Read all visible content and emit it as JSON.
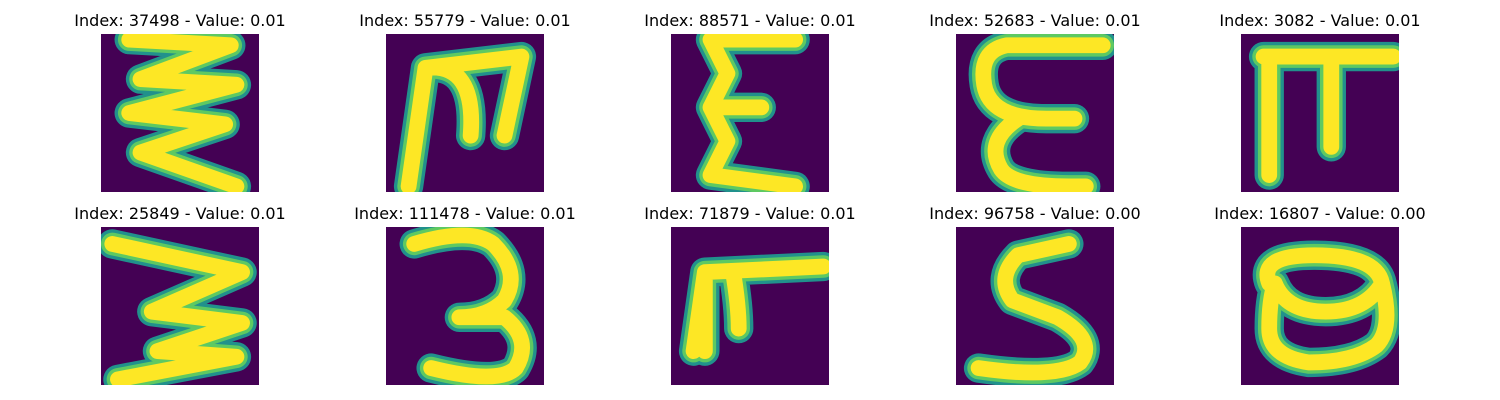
{
  "samples": [
    {
      "title": "Index: 37498 - Value: 0.01",
      "glyph": "zigzag-e"
    },
    {
      "title": "Index: 55779 - Value: 0.01",
      "glyph": "m-shape"
    },
    {
      "title": "Index: 88571 - Value: 0.01",
      "glyph": "epsilon"
    },
    {
      "title": "Index: 52683 - Value: 0.01",
      "glyph": "e-curve"
    },
    {
      "title": "Index: 3082 - Value: 0.01",
      "glyph": "pi-shape"
    },
    {
      "title": "Index: 25849 - Value: 0.01",
      "glyph": "w-sideways"
    },
    {
      "title": "Index: 111478 - Value: 0.01",
      "glyph": "digit-3"
    },
    {
      "title": "Index: 71879 - Value: 0.01",
      "glyph": "pi-slanted"
    },
    {
      "title": "Index: 96758 - Value: 0.00",
      "glyph": "letter-s"
    },
    {
      "title": "Index: 16807 - Value: 0.00",
      "glyph": "oval-o"
    }
  ],
  "colors": {
    "background": "#440154",
    "stroke_edge": "#21918c",
    "stroke_mid": "#5ec962",
    "stroke_core": "#fde725"
  }
}
